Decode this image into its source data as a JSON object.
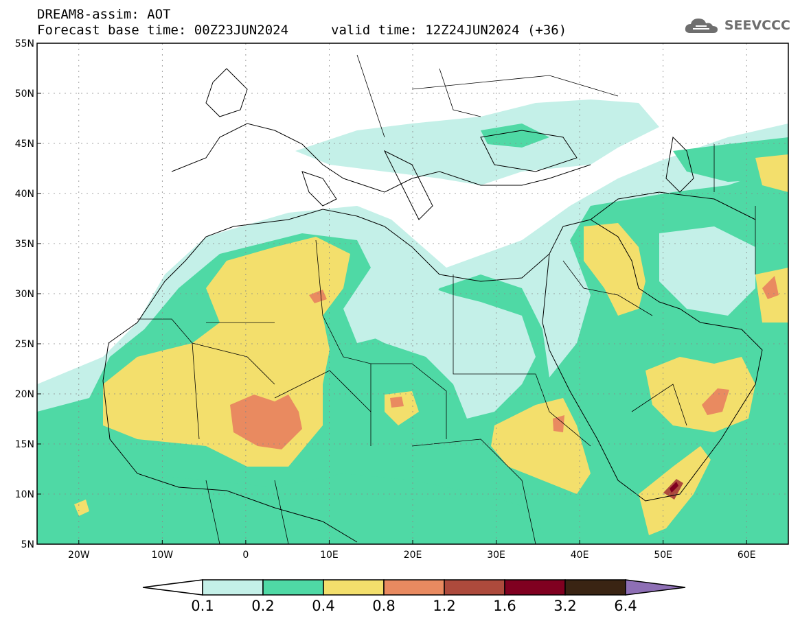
{
  "header": {
    "title": "DREAM8-assim: AOT",
    "base_time": "Forecast base time: 00Z23JUN2024",
    "valid_time": "valid time: 12Z24JUN2024 (+36)"
  },
  "logo": {
    "text": "SEEVCCC",
    "icon": "cloud-icon"
  },
  "map": {
    "lat_labels": [
      "55N",
      "50N",
      "45N",
      "40N",
      "35N",
      "30N",
      "25N",
      "20N",
      "15N",
      "10N",
      "5N"
    ],
    "lon_labels": [
      "20W",
      "10W",
      "0",
      "10E",
      "20E",
      "30E",
      "40E",
      "50E",
      "60E"
    ],
    "lat_values": [
      55,
      50,
      45,
      40,
      35,
      30,
      25,
      20,
      15,
      10,
      5
    ],
    "lon_values": [
      -20,
      -10,
      0,
      10,
      20,
      30,
      40,
      50,
      60
    ],
    "extent": {
      "lon_min": -25,
      "lon_max": 65,
      "lat_min": 5,
      "lat_max": 55
    }
  },
  "colorbar": {
    "levels": [
      "0.1",
      "0.2",
      "0.4",
      "0.8",
      "1.2",
      "1.6",
      "3.2",
      "6.4"
    ],
    "colors": [
      "#c4f0e8",
      "#4fd9a5",
      "#f3df6c",
      "#e98a60",
      "#ad4a3c",
      "#800020",
      "#3a2413",
      "#8e6fb5"
    ],
    "under_color": "#ffffff"
  }
}
